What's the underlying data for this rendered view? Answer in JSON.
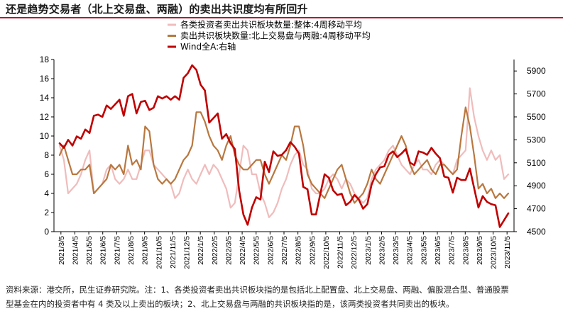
{
  "title": "还是趋势交易者（北上交易盘、两融）的卖出共识度均有所回升",
  "source_note": {
    "line1": "资料来源：港交所，民生证券研究院。注：1、各类投资者卖出共识板块指的是包括北上配置盘、北上交易盘、两融、偏股混合型、普通股票",
    "line2": "型基金在内的投资者中有 4 类及以上卖出的板块；2、北上交易盘与两融的共识板块指的是，该两类投资者共同卖出的板块。"
  },
  "colors": {
    "series_all": "#f0bcbc",
    "series_two": "#b87840",
    "series_wind": "#c00000",
    "title_rule": "#b5192b"
  },
  "chart_data": {
    "type": "line",
    "title": "还是趋势交易者（北上交易盘、两融）的卖出共识度均有所回升",
    "xlabel": "",
    "ylabel": "",
    "legend_position": "top-center",
    "grid": false,
    "x_ticks": [
      "2021/3/5",
      "2021/4/5",
      "2021/5/5",
      "2021/6/5",
      "2021/7/5",
      "2021/8/5",
      "2021/9/5",
      "2021/10/5",
      "2021/11/5",
      "2021/12/5",
      "2022/1/5",
      "2022/2/5",
      "2022/3/5",
      "2022/4/5",
      "2022/5/5",
      "2022/6/5",
      "2022/7/5",
      "2022/8/5",
      "2022/9/5",
      "2022/10/5",
      "2022/11/5",
      "2022/12/5",
      "2023/1/5",
      "2023/2/5",
      "2023/3/5",
      "2023/4/5",
      "2023/5/5",
      "2023/6/5",
      "2023/7/5",
      "2023/8/5",
      "2023/9/5",
      "2023/10/5",
      "2023/11/5"
    ],
    "y_left": {
      "min": 0,
      "max": 18,
      "ticks": [
        "0",
        "2",
        "4",
        "6",
        "8",
        "10",
        "12",
        "14",
        "16",
        "18"
      ]
    },
    "y_right": {
      "min": 4500,
      "max": 6000,
      "ticks": [
        "4500",
        "4700",
        "4900",
        "5100",
        "5300",
        "5500",
        "5700",
        "5900"
      ]
    },
    "series": [
      {
        "name": "各类投资者卖出共识板块数量:整体:4周移动平均",
        "axis": "left",
        "values": [
          9.0,
          7.5,
          4.0,
          4.5,
          5.0,
          6.0,
          7.5,
          8.5,
          4.0,
          4.5,
          5.0,
          6.5,
          7.0,
          5.5,
          5.0,
          5.5,
          6.5,
          5.5,
          5.5,
          7.0,
          8.5,
          8.5,
          7.0,
          6.5,
          6.0,
          5.5,
          5.0,
          3.5,
          4.0,
          5.5,
          6.5,
          5.5,
          5.0,
          6.0,
          7.0,
          6.0,
          7.0,
          6.5,
          5.5,
          4.5,
          2.5,
          3.0,
          6.0,
          9.0,
          8.5,
          6.0,
          6.0,
          4.0,
          3.0,
          1.5,
          2.0,
          3.0,
          4.5,
          5.5,
          7.0,
          8.0,
          8.5,
          7.0,
          6.5,
          4.5,
          4.0,
          4.0,
          4.5,
          5.5,
          6.0,
          5.5,
          4.5,
          5.5,
          5.0,
          4.0,
          3.5,
          3.0,
          3.5,
          5.5,
          6.5,
          7.0,
          7.5,
          8.5,
          9.0,
          8.0,
          7.0,
          6.5,
          6.0,
          7.0,
          7.5,
          6.5,
          6.5,
          6.0,
          7.0,
          7.5,
          7.0,
          6.5,
          6.0,
          7.5,
          8.0,
          8.5,
          15.0,
          12.0,
          10.0,
          8.5,
          7.5,
          8.5,
          7.5,
          8.0,
          5.5,
          6.0
        ]
      },
      {
        "name": "卖出共识板块数量:北上交易盘与两融:4周移动平均",
        "axis": "left",
        "values": [
          8.0,
          9.0,
          7.5,
          6.0,
          6.0,
          6.5,
          6.5,
          7.0,
          4.0,
          4.5,
          5.0,
          5.5,
          7.0,
          6.5,
          7.0,
          6.0,
          9.0,
          7.0,
          7.5,
          6.5,
          11.0,
          10.5,
          7.0,
          5.5,
          5.0,
          5.5,
          5.0,
          5.5,
          6.5,
          7.5,
          8.0,
          9.0,
          12.5,
          12.5,
          11.5,
          10.0,
          9.0,
          8.5,
          7.5,
          9.0,
          10.0,
          8.0,
          7.0,
          6.5,
          6.5,
          7.0,
          7.5,
          7.5,
          6.0,
          5.0,
          6.0,
          7.0,
          8.0,
          7.5,
          9.0,
          11.0,
          11.0,
          9.0,
          6.0,
          5.0,
          4.5,
          4.0,
          3.5,
          4.5,
          5.5,
          6.5,
          7.0,
          5.5,
          4.0,
          3.0,
          3.5,
          4.0,
          5.0,
          6.5,
          5.5,
          5.0,
          6.0,
          7.0,
          8.0,
          9.0,
          10.0,
          9.0,
          7.0,
          6.0,
          6.5,
          7.0,
          7.5,
          6.5,
          6.0,
          7.0,
          7.0,
          6.5,
          6.0,
          6.5,
          10.0,
          13.0,
          11.0,
          8.0,
          4.5,
          5.0,
          4.0,
          4.5,
          3.5,
          4.0,
          3.5,
          4.0
        ]
      },
      {
        "name": "Wind全A:右轴",
        "axis": "right",
        "values": [
          5270,
          5230,
          5300,
          5250,
          5330,
          5310,
          5390,
          5360,
          5510,
          5520,
          5500,
          5600,
          5570,
          5610,
          5650,
          5510,
          5680,
          5700,
          5530,
          5630,
          5640,
          5560,
          5580,
          5680,
          5660,
          5680,
          5650,
          5680,
          5650,
          5840,
          5880,
          5950,
          5910,
          5780,
          5730,
          5450,
          5490,
          5530,
          5310,
          5350,
          5270,
          5220,
          4860,
          4650,
          4560,
          4710,
          4800,
          4780,
          5110,
          5020,
          5200,
          5160,
          5170,
          5210,
          5280,
          5240,
          5180,
          4890,
          4870,
          4650,
          4650,
          4830,
          5000,
          4970,
          4860,
          4820,
          4830,
          4730,
          4760,
          4820,
          4780,
          4700,
          4740,
          4910,
          5000,
          5060,
          5070,
          5170,
          5200,
          5150,
          5180,
          5220,
          5100,
          5080,
          5200,
          5190,
          5170,
          5230,
          5180,
          5140,
          4980,
          4970,
          4840,
          4970,
          4950,
          4950,
          5050,
          4880,
          4710,
          4810,
          4760,
          4740,
          4730,
          4540,
          4600,
          4660
        ]
      }
    ]
  }
}
